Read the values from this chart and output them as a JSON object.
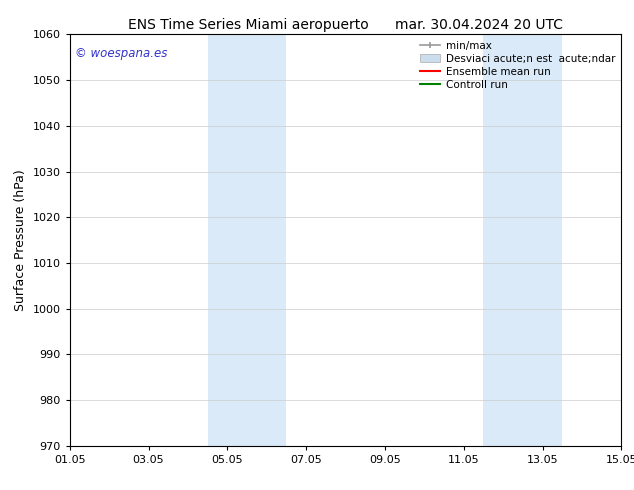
{
  "title_left": "ENS Time Series Miami aeropuerto",
  "title_right": "mar. 30.04.2024 20 UTC",
  "ylabel": "Surface Pressure (hPa)",
  "ylim": [
    970,
    1060
  ],
  "yticks": [
    970,
    980,
    990,
    1000,
    1010,
    1020,
    1030,
    1040,
    1050,
    1060
  ],
  "xlim_start": 0,
  "xlim_end": 14,
  "xtick_labels": [
    "01.05",
    "03.05",
    "05.05",
    "07.05",
    "09.05",
    "11.05",
    "13.05",
    "15.05"
  ],
  "xtick_positions": [
    0,
    2,
    4,
    6,
    8,
    10,
    12,
    14
  ],
  "shaded_bands": [
    {
      "x_start": 3.5,
      "x_end": 4.5
    },
    {
      "x_start": 4.5,
      "x_end": 5.5
    },
    {
      "x_start": 10.5,
      "x_end": 11.5
    },
    {
      "x_start": 11.5,
      "x_end": 12.5
    }
  ],
  "shaded_color": "#daeaf8",
  "watermark": "© woespana.es",
  "watermark_color": "#3333cc",
  "bg_color": "#ffffff",
  "grid_color": "#cccccc",
  "legend_minmax_color": "#999999",
  "legend_std_color": "#ccddee",
  "legend_ens_color": "#ff0000",
  "legend_ctrl_color": "#008000",
  "legend_label_minmax": "min/max",
  "legend_label_std": "Desviaci acute;n est  acute;ndar",
  "legend_label_ens": "Ensemble mean run",
  "legend_label_ctrl": "Controll run",
  "title_fontsize": 10,
  "label_fontsize": 9,
  "tick_fontsize": 8,
  "legend_fontsize": 7.5
}
